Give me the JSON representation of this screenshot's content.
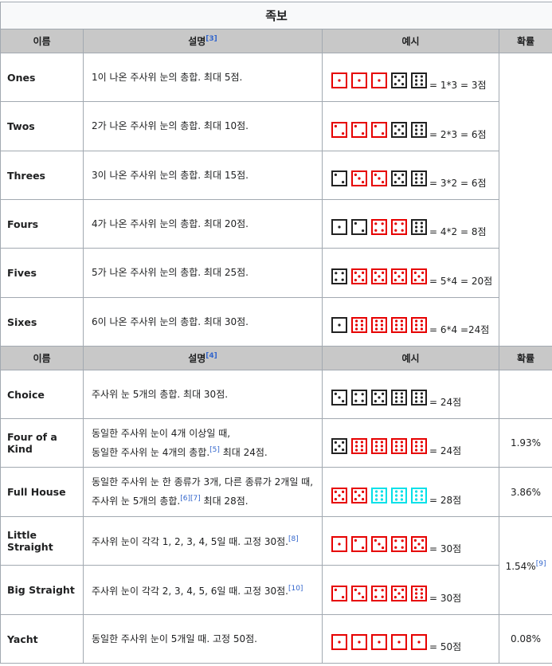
{
  "title": "족보",
  "colors": {
    "black": "#222222",
    "red": "#e60000",
    "cyan": "#00e0e8"
  },
  "headers": [
    {
      "name": "이름",
      "desc": "설명",
      "desc_ref": "[3]",
      "example": "예시",
      "prob": "확률"
    },
    {
      "name": "이름",
      "desc": "설명",
      "desc_ref": "[4]",
      "example": "예시",
      "prob": "확률"
    }
  ],
  "rows": [
    {
      "name": "Ones",
      "desc": "1이 나온 주사위 눈의 총합. 최대 5점.",
      "dice": [
        [
          1,
          "r"
        ],
        [
          1,
          "r"
        ],
        [
          1,
          "r"
        ],
        [
          5,
          "k"
        ],
        [
          6,
          "k"
        ]
      ],
      "result": "= 1*3 = 3점",
      "prob": ""
    },
    {
      "name": "Twos",
      "desc": "2가 나온 주사위 눈의 총합. 최대 10점.",
      "dice": [
        [
          2,
          "r"
        ],
        [
          2,
          "r"
        ],
        [
          2,
          "r"
        ],
        [
          5,
          "k"
        ],
        [
          6,
          "k"
        ]
      ],
      "result": "= 2*3 = 6점",
      "prob": ""
    },
    {
      "name": "Threes",
      "desc": "3이 나온 주사위 눈의 총합. 최대 15점.",
      "dice": [
        [
          2,
          "k"
        ],
        [
          3,
          "r"
        ],
        [
          3,
          "r"
        ],
        [
          5,
          "k"
        ],
        [
          6,
          "k"
        ]
      ],
      "result": "= 3*2 = 6점",
      "prob": ""
    },
    {
      "name": "Fours",
      "desc": "4가 나온 주사위 눈의 총합. 최대 20점.",
      "dice": [
        [
          1,
          "k"
        ],
        [
          2,
          "k"
        ],
        [
          4,
          "r"
        ],
        [
          4,
          "r"
        ],
        [
          6,
          "k"
        ]
      ],
      "result": "= 4*2 = 8점",
      "prob": ""
    },
    {
      "name": "Fives",
      "desc": "5가 나온 주사위 눈의 총합. 최대 25점.",
      "dice": [
        [
          4,
          "k"
        ],
        [
          5,
          "r"
        ],
        [
          5,
          "r"
        ],
        [
          5,
          "r"
        ],
        [
          5,
          "r"
        ]
      ],
      "result": "= 5*4 = 20점",
      "prob": ""
    },
    {
      "name": "Sixes",
      "desc": "6이 나온 주사위 눈의 총합. 최대 30점.",
      "dice": [
        [
          1,
          "k"
        ],
        [
          6,
          "r"
        ],
        [
          6,
          "r"
        ],
        [
          6,
          "r"
        ],
        [
          6,
          "r"
        ]
      ],
      "result": "= 6*4 =24점",
      "prob": ""
    },
    {
      "name": "Choice",
      "desc": "주사위 눈 5개의 총합. 최대 30점.",
      "dice": [
        [
          3,
          "k"
        ],
        [
          4,
          "k"
        ],
        [
          5,
          "k"
        ],
        [
          6,
          "k"
        ],
        [
          6,
          "k"
        ]
      ],
      "result": "= 24점",
      "prob": ""
    },
    {
      "name": "Four of a Kind",
      "desc": "동일한 주사위 눈이 4개 이상일 때,",
      "desc2": "동일한 주사위 눈 4개의 총합.",
      "desc2_ref": "[5]",
      "desc2_tail": " 최대 24점.",
      "dice": [
        [
          5,
          "k"
        ],
        [
          6,
          "r"
        ],
        [
          6,
          "r"
        ],
        [
          6,
          "r"
        ],
        [
          6,
          "r"
        ]
      ],
      "result": "= 24점",
      "prob": "1.93%"
    },
    {
      "name": "Full House",
      "desc": "동일한 주사위 눈 한 종류가 3개, 다른 종류가 2개일 때,",
      "desc2": "주사위 눈 5개의 총합.",
      "desc2_ref": "[6][7]",
      "desc2_tail": " 최대 28점.",
      "dice": [
        [
          5,
          "r"
        ],
        [
          5,
          "r"
        ],
        [
          6,
          "c"
        ],
        [
          6,
          "c"
        ],
        [
          6,
          "c"
        ]
      ],
      "result": "= 28점",
      "prob": "3.86%"
    },
    {
      "name": "Little Straight",
      "desc": "주사위 눈이 각각 1, 2, 3, 4, 5일 때. 고정 30점.",
      "desc_ref": "[8]",
      "dice": [
        [
          1,
          "r"
        ],
        [
          2,
          "r"
        ],
        [
          3,
          "r"
        ],
        [
          4,
          "r"
        ],
        [
          5,
          "r"
        ]
      ],
      "result": "= 30점",
      "prob": "1.54%",
      "prob_ref": "[9]"
    },
    {
      "name": "Big Straight",
      "desc": "주사위 눈이 각각 2, 3, 4, 5, 6일 때. 고정 30점.",
      "desc_ref": "[10]",
      "dice": [
        [
          2,
          "r"
        ],
        [
          3,
          "r"
        ],
        [
          4,
          "r"
        ],
        [
          5,
          "r"
        ],
        [
          6,
          "r"
        ]
      ],
      "result": "= 30점",
      "prob": ""
    },
    {
      "name": "Yacht",
      "desc": "동일한 주사위 눈이 5개일 때. 고정 50점.",
      "dice": [
        [
          1,
          "r"
        ],
        [
          1,
          "r"
        ],
        [
          1,
          "r"
        ],
        [
          1,
          "r"
        ],
        [
          1,
          "r"
        ]
      ],
      "result": "= 50점",
      "prob": "0.08%"
    }
  ]
}
